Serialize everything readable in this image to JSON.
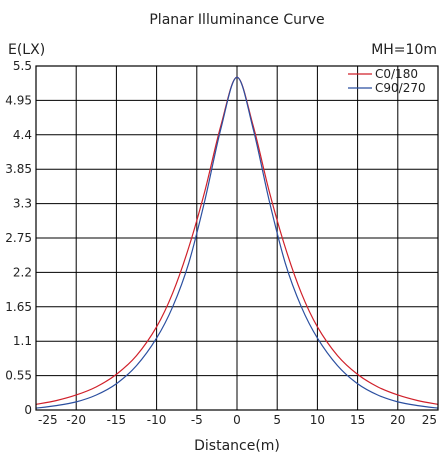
{
  "chart_data": {
    "type": "line",
    "title": "Planar Illuminance Curve",
    "ylabel": "E(LX)",
    "xlabel": "Distance(m)",
    "annotation": "MH=10m",
    "xlim": [
      -25,
      25
    ],
    "ylim": [
      0,
      5.5
    ],
    "x_ticks": [
      -25,
      -20,
      -15,
      -10,
      -5,
      0,
      5,
      10,
      15,
      20,
      25
    ],
    "y_ticks": [
      "0",
      "0.55",
      "1.1",
      "1.65",
      "2.2",
      "2.75",
      "3.3",
      "3.85",
      "4.4",
      "4.95",
      "5.5"
    ],
    "grid": true,
    "legend_position": "top-right",
    "x": [
      -25,
      -22.5,
      -20,
      -17.5,
      -15,
      -12.5,
      -10,
      -8,
      -6,
      -4,
      -2,
      0,
      2,
      4,
      6,
      8,
      10,
      12.5,
      15,
      17.5,
      20,
      22.5,
      25
    ],
    "series": [
      {
        "name": "C0/180",
        "color": "#d0202a",
        "values": [
          0.09,
          0.15,
          0.24,
          0.37,
          0.57,
          0.87,
          1.33,
          1.87,
          2.6,
          3.5,
          4.55,
          5.32,
          4.55,
          3.5,
          2.6,
          1.87,
          1.33,
          0.87,
          0.57,
          0.37,
          0.24,
          0.15,
          0.09
        ]
      },
      {
        "name": "C90/270",
        "color": "#2b4fa0",
        "values": [
          0.03,
          0.07,
          0.13,
          0.24,
          0.42,
          0.71,
          1.15,
          1.65,
          2.35,
          3.35,
          4.5,
          5.32,
          4.5,
          3.35,
          2.35,
          1.65,
          1.15,
          0.71,
          0.42,
          0.24,
          0.13,
          0.07,
          0.03
        ]
      }
    ]
  }
}
